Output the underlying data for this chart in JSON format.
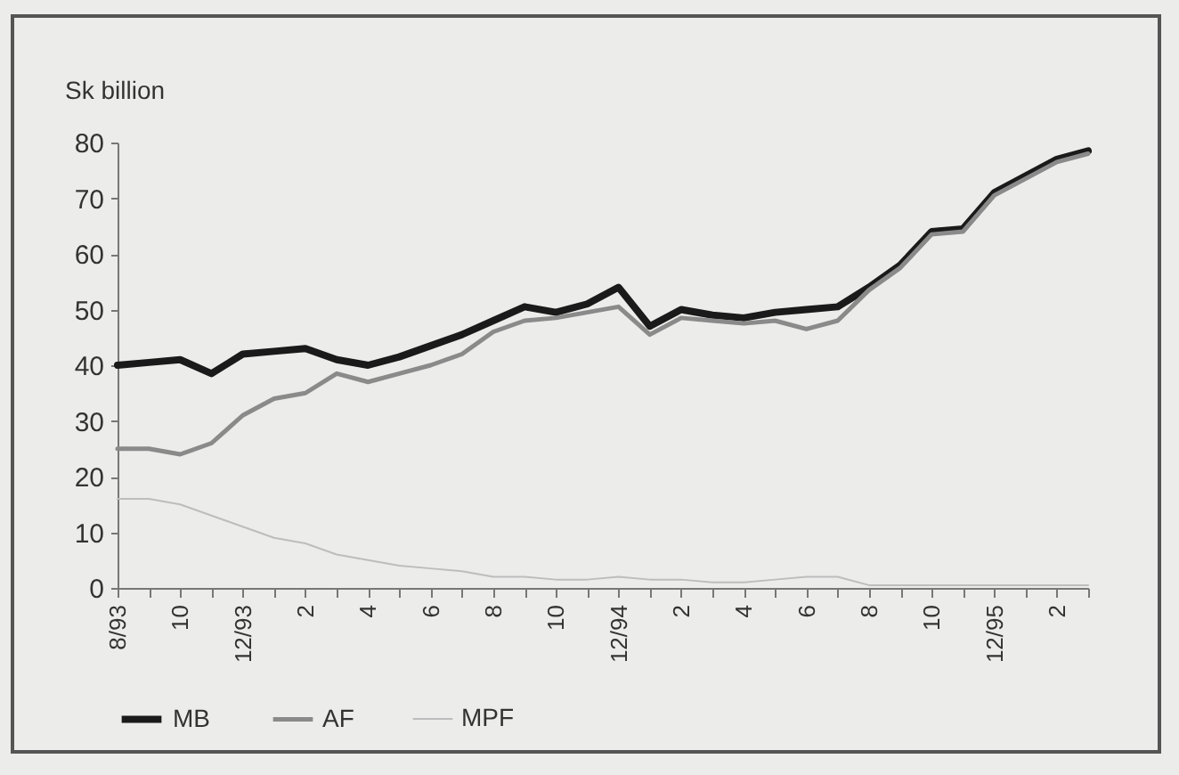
{
  "chart_data": {
    "type": "line",
    "ylabel": "Sk billion",
    "categories": [
      "8/93",
      null,
      "10",
      null,
      "12/93",
      null,
      "2",
      null,
      "4",
      null,
      "6",
      null,
      "8",
      null,
      "10",
      null,
      "12/94",
      null,
      "2",
      null,
      "4",
      null,
      "6",
      null,
      "8",
      null,
      "10",
      null,
      "12/95",
      null,
      "2",
      null
    ],
    "series": [
      {
        "name": "MB",
        "color": "#1a1a1a",
        "values": [
          40,
          40.5,
          41,
          38.5,
          42,
          42.5,
          43,
          41,
          40,
          41.5,
          43.5,
          45.5,
          48,
          50.5,
          49.5,
          51,
          54,
          47,
          50,
          49,
          48.5,
          49.5,
          50,
          50.5,
          54,
          58,
          64,
          64.5,
          71,
          74,
          77,
          78.5
        ]
      },
      {
        "name": "AF",
        "color": "#8a8a8a",
        "values": [
          25,
          25,
          24,
          26,
          31,
          34,
          35,
          38.5,
          37,
          38.5,
          40,
          42,
          46,
          48,
          48.5,
          49.5,
          50.5,
          45.5,
          48.5,
          48,
          47.5,
          48,
          46.5,
          48,
          53.5,
          57.5,
          63.5,
          64,
          70.5,
          73.5,
          76.5,
          78
        ]
      },
      {
        "name": "MPF",
        "color": "#bdbdbd",
        "values": [
          16,
          16,
          15,
          13,
          11,
          9,
          8,
          6,
          5,
          4,
          3.5,
          3,
          2,
          2,
          1.5,
          1.5,
          2,
          1.5,
          1.5,
          1,
          1,
          1.5,
          2,
          2,
          0.5,
          0.5,
          0.5,
          0.5,
          0.5,
          0.5,
          0.5,
          0.5
        ]
      }
    ],
    "ylim": [
      0,
      80
    ],
    "yticks": [
      0,
      10,
      20,
      30,
      40,
      50,
      60,
      70,
      80
    ],
    "grid": false,
    "legend": "bottom",
    "marker": "none",
    "line_style": "solid"
  }
}
